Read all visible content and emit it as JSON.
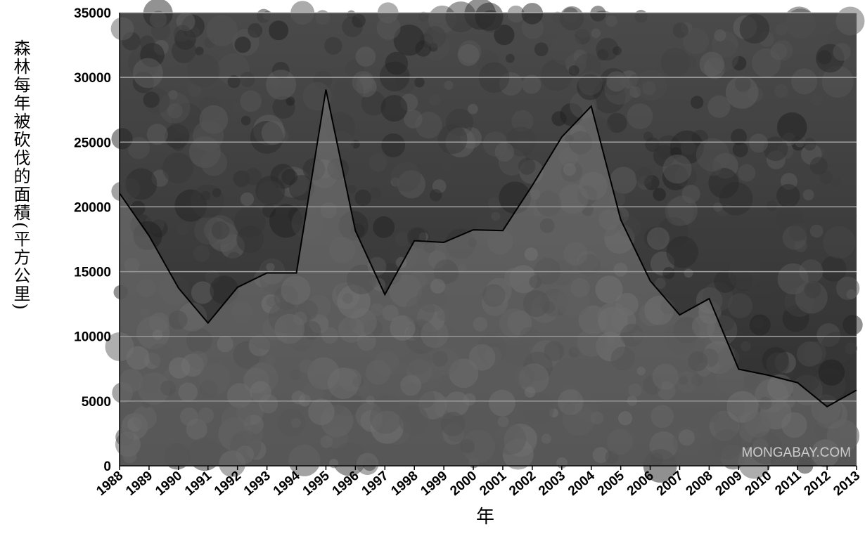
{
  "chart_data": {
    "type": "area",
    "y_label": "森林每年被砍伐的面積(平方公里)",
    "x_label": "年",
    "annotation": "MONGABAY.COM",
    "categories": [
      "1988",
      "1989",
      "1990",
      "1991",
      "1992",
      "1993",
      "1994",
      "1995",
      "1996",
      "1997",
      "1998",
      "1999",
      "2000",
      "2001",
      "2002",
      "2003",
      "2004",
      "2005",
      "2006",
      "2007",
      "2008",
      "2009",
      "2010",
      "2011",
      "2012",
      "2013"
    ],
    "values": [
      21050,
      17770,
      13730,
      11030,
      13786,
      14896,
      14896,
      29059,
      18161,
      13227,
      17383,
      17259,
      18226,
      18165,
      21651,
      25396,
      27772,
      19014,
      14286,
      11651,
      12911,
      7464,
      7000,
      6418,
      4571,
      5843
    ],
    "color": "#000000",
    "ylim": [
      0,
      35000
    ],
    "yticks": [
      0,
      5000,
      10000,
      15000,
      20000,
      25000,
      30000,
      35000
    ],
    "grid": true
  }
}
